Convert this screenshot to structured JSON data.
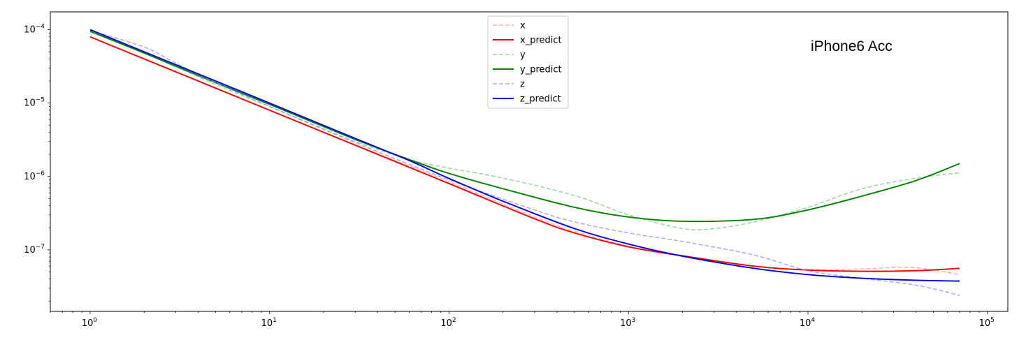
{
  "chart_data": {
    "type": "line",
    "title": "",
    "xlabel": "",
    "ylabel": "",
    "xscale": "log",
    "yscale": "log",
    "xlim": [
      0.6,
      130000
    ],
    "ylim": [
      1.45e-08,
      0.000175
    ],
    "grid": false,
    "legend_position": "top-center",
    "annotation": "iPhone6 Acc",
    "x_ticks": [
      {
        "base": "10",
        "exp": "0",
        "value": 1
      },
      {
        "base": "10",
        "exp": "1",
        "value": 10
      },
      {
        "base": "10",
        "exp": "2",
        "value": 100
      },
      {
        "base": "10",
        "exp": "3",
        "value": 1000
      },
      {
        "base": "10",
        "exp": "4",
        "value": 10000
      },
      {
        "base": "10",
        "exp": "5",
        "value": 100000
      }
    ],
    "y_ticks": [
      {
        "base": "10",
        "exp": "−4",
        "value": 0.0001
      },
      {
        "base": "10",
        "exp": "−5",
        "value": 1e-05
      },
      {
        "base": "10",
        "exp": "−6",
        "value": 1e-06
      },
      {
        "base": "10",
        "exp": "−7",
        "value": 1e-07
      }
    ],
    "series": [
      {
        "name": "x",
        "color": "#ff9999",
        "style": "dashed",
        "opacity": 0.75,
        "points": [
          [
            1,
            8e-05
          ],
          [
            2,
            4e-05
          ],
          [
            5,
            1.6e-05
          ],
          [
            10,
            8e-06
          ],
          [
            30,
            2.7e-06
          ],
          [
            100,
            8.5e-07
          ],
          [
            300,
            2.8e-07
          ],
          [
            500,
            1.8e-07
          ],
          [
            1000,
            1.12e-07
          ],
          [
            2000,
            8.2e-08
          ],
          [
            5000,
            6e-08
          ],
          [
            10000,
            5.4e-08
          ],
          [
            20000,
            5.5e-08
          ],
          [
            35000,
            5.8e-08
          ],
          [
            50000,
            5.3e-08
          ],
          [
            70000,
            4.6e-08
          ]
        ]
      },
      {
        "name": "x_predict",
        "color": "#ee0000",
        "style": "solid",
        "opacity": 1,
        "points": [
          [
            1,
            8e-05
          ],
          [
            2,
            4e-05
          ],
          [
            5,
            1.6e-05
          ],
          [
            10,
            8e-06
          ],
          [
            30,
            2.67e-06
          ],
          [
            100,
            8e-07
          ],
          [
            300,
            2.65e-07
          ],
          [
            500,
            1.7e-07
          ],
          [
            1000,
            1.1e-07
          ],
          [
            2000,
            8.3e-08
          ],
          [
            5000,
            6e-08
          ],
          [
            10000,
            5.3e-08
          ],
          [
            20000,
            5.1e-08
          ],
          [
            40000,
            5.2e-08
          ],
          [
            70000,
            5.6e-08
          ]
        ]
      },
      {
        "name": "y",
        "color": "#66bb66",
        "style": "dashed",
        "opacity": 0.6,
        "points": [
          [
            1,
            9.5e-05
          ],
          [
            2,
            4.8e-05
          ],
          [
            5,
            1.8e-05
          ],
          [
            10,
            9e-06
          ],
          [
            30,
            3e-06
          ],
          [
            60,
            1.7e-06
          ],
          [
            100,
            1.3e-06
          ],
          [
            200,
            9.5e-07
          ],
          [
            500,
            5.5e-07
          ],
          [
            1000,
            3e-07
          ],
          [
            2000,
            1.95e-07
          ],
          [
            3000,
            1.95e-07
          ],
          [
            5000,
            2.4e-07
          ],
          [
            10000,
            3.8e-07
          ],
          [
            20000,
            6.8e-07
          ],
          [
            40000,
            9.5e-07
          ],
          [
            70000,
            1.12e-06
          ]
        ]
      },
      {
        "name": "y_predict",
        "color": "#008000",
        "style": "solid",
        "opacity": 1,
        "points": [
          [
            1,
            9.5e-05
          ],
          [
            2,
            4.8e-05
          ],
          [
            5,
            1.9e-05
          ],
          [
            10,
            9.6e-06
          ],
          [
            30,
            3.2e-06
          ],
          [
            60,
            1.7e-06
          ],
          [
            100,
            1.1e-06
          ],
          [
            200,
            6.8e-07
          ],
          [
            500,
            3.8e-07
          ],
          [
            1000,
            2.8e-07
          ],
          [
            2000,
            2.45e-07
          ],
          [
            5000,
            2.6e-07
          ],
          [
            10000,
            3.5e-07
          ],
          [
            20000,
            5.4e-07
          ],
          [
            40000,
            8.8e-07
          ],
          [
            70000,
            1.5e-06
          ]
        ]
      },
      {
        "name": "z",
        "color": "#8888ff",
        "style": "dashed",
        "opacity": 0.7,
        "points": [
          [
            1,
            9.8e-05
          ],
          [
            2,
            5.8e-05
          ],
          [
            3,
            3.5e-05
          ],
          [
            5,
            1.9e-05
          ],
          [
            10,
            9e-06
          ],
          [
            30,
            2.9e-06
          ],
          [
            100,
            9e-07
          ],
          [
            300,
            3.5e-07
          ],
          [
            500,
            2.4e-07
          ],
          [
            1000,
            1.7e-07
          ],
          [
            2000,
            1.3e-07
          ],
          [
            5000,
            8.5e-08
          ],
          [
            10000,
            5.2e-08
          ],
          [
            20000,
            4.1e-08
          ],
          [
            40000,
            3.3e-08
          ],
          [
            70000,
            2.4e-08
          ]
        ]
      },
      {
        "name": "z_predict",
        "color": "#0000dd",
        "style": "solid",
        "opacity": 1,
        "points": [
          [
            1,
            0.0001
          ],
          [
            2,
            5e-05
          ],
          [
            5,
            2e-05
          ],
          [
            10,
            1e-05
          ],
          [
            30,
            3.3e-06
          ],
          [
            60,
            1.65e-06
          ],
          [
            100,
            9.4e-07
          ],
          [
            200,
            4.6e-07
          ],
          [
            500,
            1.95e-07
          ],
          [
            1000,
            1.2e-07
          ],
          [
            2000,
            8.2e-08
          ],
          [
            5000,
            5.6e-08
          ],
          [
            10000,
            4.6e-08
          ],
          [
            20000,
            4.1e-08
          ],
          [
            40000,
            3.85e-08
          ],
          [
            70000,
            3.75e-08
          ]
        ]
      }
    ]
  }
}
